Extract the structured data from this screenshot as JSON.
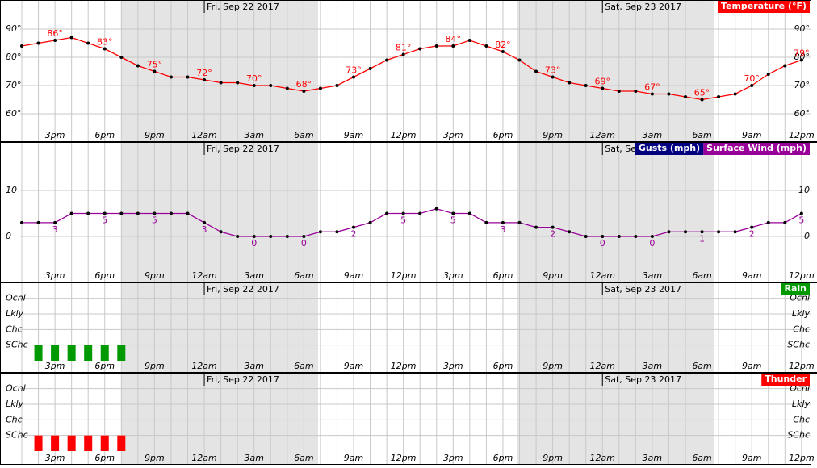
{
  "chart_data": [
    {
      "type": "line",
      "categories": [
        null,
        null,
        "3pm",
        null,
        null,
        "6pm",
        null,
        null,
        "9pm",
        null,
        null,
        "12am",
        null,
        null,
        "3am",
        null,
        null,
        "6am",
        null,
        null,
        "9am",
        null,
        null,
        "12pm",
        null,
        null,
        "3pm",
        null,
        null,
        "6pm",
        null,
        null,
        "9pm",
        null,
        null,
        "12am",
        null,
        null,
        "3am",
        null,
        null,
        "6am",
        null,
        null,
        "9am",
        null,
        null,
        "12pm"
      ],
      "date_labels": [
        "Fri, Sep 22 2017",
        "Sat, Sep 23 2017"
      ],
      "series": [
        {
          "name": "Temperature (°F)",
          "color": "#ff0000",
          "values": [
            84,
            85,
            86,
            87,
            85,
            83,
            80,
            77,
            75,
            73,
            73,
            72,
            71,
            71,
            70,
            70,
            69,
            68,
            69,
            70,
            73,
            76,
            79,
            81,
            83,
            84,
            84,
            86,
            84,
            82,
            79,
            75,
            73,
            71,
            70,
            69,
            68,
            68,
            67,
            67,
            66,
            65,
            66,
            67,
            70,
            74,
            77,
            79
          ],
          "value_labels": [
            null,
            null,
            "86°",
            null,
            null,
            "83°",
            null,
            null,
            "75°",
            null,
            null,
            "72°",
            null,
            null,
            "70°",
            null,
            null,
            "68°",
            null,
            null,
            "73°",
            null,
            null,
            "81°",
            null,
            null,
            "84°",
            null,
            null,
            "82°",
            null,
            null,
            "73°",
            null,
            null,
            "69°",
            null,
            null,
            "67°",
            null,
            null,
            "65°",
            null,
            null,
            "70°",
            null,
            null,
            "79°"
          ]
        }
      ],
      "ylim": [
        55,
        95
      ],
      "yticks": [
        {
          "value": 60,
          "label": "60°"
        },
        {
          "value": 70,
          "label": "70°"
        },
        {
          "value": 80,
          "label": "80°"
        },
        {
          "value": 90,
          "label": "90°"
        }
      ],
      "grid": true,
      "legend": "upper right"
    },
    {
      "type": "line",
      "categories": [
        null,
        null,
        "3pm",
        null,
        null,
        "6pm",
        null,
        null,
        "9pm",
        null,
        null,
        "12am",
        null,
        null,
        "3am",
        null,
        null,
        "6am",
        null,
        null,
        "9am",
        null,
        null,
        "12pm",
        null,
        null,
        "3pm",
        null,
        null,
        "6pm",
        null,
        null,
        "9pm",
        null,
        null,
        "12am",
        null,
        null,
        "3am",
        null,
        null,
        "6am",
        null,
        null,
        "9am",
        null,
        null,
        "12pm"
      ],
      "date_labels": [
        "Fri, Sep 22 2017",
        "Sat, Sep 23 2017"
      ],
      "series": [
        {
          "name": "Gusts (mph)",
          "color": "#000080",
          "values": [
            null,
            null,
            null,
            null,
            null,
            null,
            null,
            null,
            null,
            null,
            null,
            null,
            null,
            null,
            null,
            null,
            null,
            null,
            null,
            null,
            null,
            null,
            null,
            null,
            null,
            null,
            null,
            null,
            null,
            null,
            null,
            null,
            null,
            null,
            null,
            null,
            null,
            null,
            null,
            null,
            null,
            null,
            null,
            null,
            null,
            null,
            null,
            null
          ]
        },
        {
          "name": "Surface Wind (mph)",
          "color": "#990099",
          "values": [
            3,
            3,
            3,
            5,
            5,
            5,
            5,
            5,
            5,
            5,
            5,
            3,
            1,
            0,
            0,
            0,
            0,
            0,
            1,
            1,
            2,
            3,
            5,
            5,
            5,
            6,
            5,
            5,
            3,
            3,
            3,
            2,
            2,
            1,
            0,
            0,
            0,
            0,
            0,
            1,
            1,
            1,
            1,
            1,
            2,
            3,
            3,
            5
          ]
        }
      ],
      "ylim": [
        -7,
        18
      ],
      "yticks": [
        0,
        10
      ],
      "grid": true,
      "legend": "upper right"
    },
    {
      "type": "bar",
      "categories": [
        null,
        null,
        "3pm",
        null,
        null,
        "6pm",
        null,
        null,
        "9pm",
        null,
        null,
        "12am",
        null,
        null,
        "3am",
        null,
        null,
        "6am",
        null,
        null,
        "9am",
        null,
        null,
        "12pm",
        null,
        null,
        "3pm",
        null,
        null,
        "6pm",
        null,
        null,
        "9pm",
        null,
        null,
        "12am",
        null,
        null,
        "3am",
        null,
        null,
        "6am",
        null,
        null,
        "9am",
        null,
        null,
        "12pm"
      ],
      "date_labels": [
        "Fri, Sep 22 2017",
        "Sat, Sep 23 2017"
      ],
      "series": [
        {
          "name": "Rain",
          "color": "#009900",
          "values": [
            0,
            1,
            1,
            1,
            1,
            1,
            1,
            0,
            0,
            0,
            0,
            0,
            0,
            0,
            0,
            0,
            0,
            0,
            0,
            0,
            0,
            0,
            0,
            0,
            0,
            0,
            0,
            0,
            0,
            0,
            0,
            0,
            0,
            0,
            0,
            0,
            0,
            0,
            0,
            0,
            0,
            0,
            0,
            0,
            0,
            0,
            0,
            0
          ]
        }
      ],
      "ylim": [
        0,
        4.5
      ],
      "yticks": [
        {
          "value": 1,
          "label": "SChc"
        },
        {
          "value": 2,
          "label": "Chc"
        },
        {
          "value": 3,
          "label": "Lkly"
        },
        {
          "value": 4,
          "label": "Ocnl"
        }
      ],
      "grid": true,
      "legend": "upper right"
    },
    {
      "type": "bar",
      "categories": [
        null,
        null,
        "3pm",
        null,
        null,
        "6pm",
        null,
        null,
        "9pm",
        null,
        null,
        "12am",
        null,
        null,
        "3am",
        null,
        null,
        "6am",
        null,
        null,
        "9am",
        null,
        null,
        "12pm",
        null,
        null,
        "3pm",
        null,
        null,
        "6pm",
        null,
        null,
        "9pm",
        null,
        null,
        "12am",
        null,
        null,
        "3am",
        null,
        null,
        "6am",
        null,
        null,
        "9am",
        null,
        null,
        "12pm"
      ],
      "date_labels": [
        "Fri, Sep 22 2017",
        "Sat, Sep 23 2017"
      ],
      "series": [
        {
          "name": "Thunder",
          "color": "#ff0000",
          "values": [
            0,
            1,
            1,
            1,
            1,
            1,
            1,
            0,
            0,
            0,
            0,
            0,
            0,
            0,
            0,
            0,
            0,
            0,
            0,
            0,
            0,
            0,
            0,
            0,
            0,
            0,
            0,
            0,
            0,
            0,
            0,
            0,
            0,
            0,
            0,
            0,
            0,
            0,
            0,
            0,
            0,
            0,
            0,
            0,
            0,
            0,
            0,
            0
          ]
        }
      ],
      "ylim": [
        0,
        4.5
      ],
      "yticks": [
        {
          "value": 1,
          "label": "SChc"
        },
        {
          "value": 2,
          "label": "Chc"
        },
        {
          "value": 3,
          "label": "Lkly"
        },
        {
          "value": 4,
          "label": "Ocnl"
        }
      ],
      "grid": true,
      "legend": "upper right"
    }
  ]
}
